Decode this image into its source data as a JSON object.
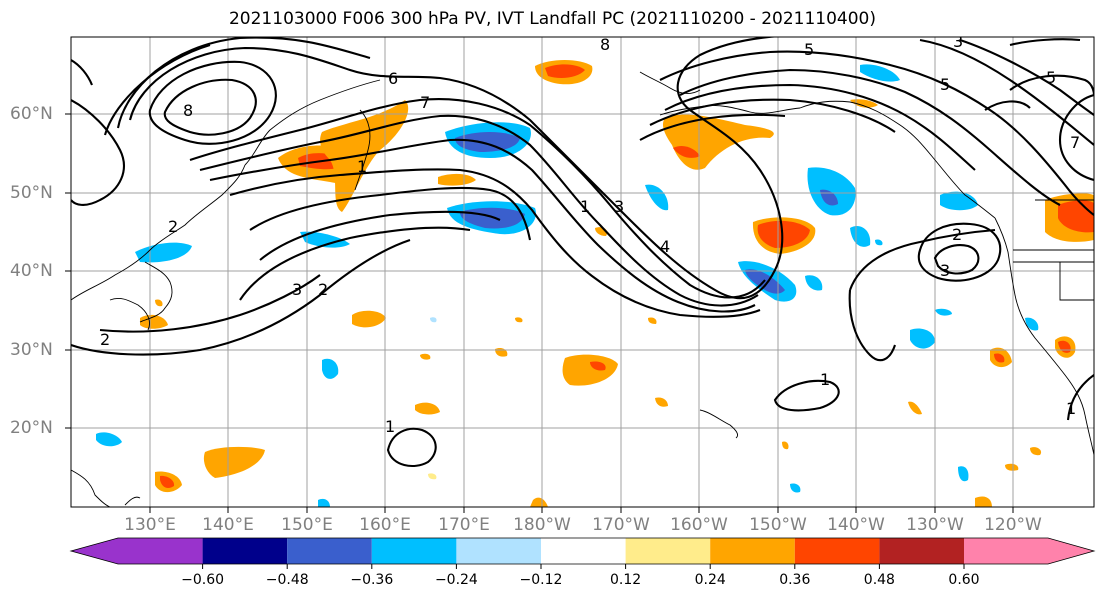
{
  "title": "2021103000 F006 300 hPa PV, IVT Landfall PC (2021110200 - 2021110400)",
  "map": {
    "lon_labels": [
      "130°E",
      "140°E",
      "150°E",
      "160°E",
      "170°E",
      "180°W",
      "170°W",
      "160°W",
      "150°W",
      "140°W",
      "130°W",
      "120°W"
    ],
    "lat_labels": [
      "60°N",
      "50°N",
      "40°N",
      "30°N",
      "20°N"
    ],
    "contour_labels": [
      "8",
      "6",
      "1",
      "7",
      "2",
      "3",
      "2",
      "2",
      "8",
      "5",
      "3",
      "5",
      "5",
      "1",
      "3",
      "4",
      "7",
      "2",
      "3",
      "1",
      "1",
      "1"
    ],
    "label_color": "#808080"
  },
  "colorbar": {
    "ticks": [
      "−0.60",
      "−0.48",
      "−0.36",
      "−0.24",
      "−0.12",
      "0.12",
      "0.24",
      "0.36",
      "0.48",
      "0.60"
    ],
    "colors": [
      "#9933cc",
      "#00008b",
      "#3a5fcd",
      "#00bfff",
      "#b0e2ff",
      "#ffffff",
      "#ffec8b",
      "#ffa500",
      "#ff4500",
      "#b22222",
      "#ff82ab"
    ]
  }
}
